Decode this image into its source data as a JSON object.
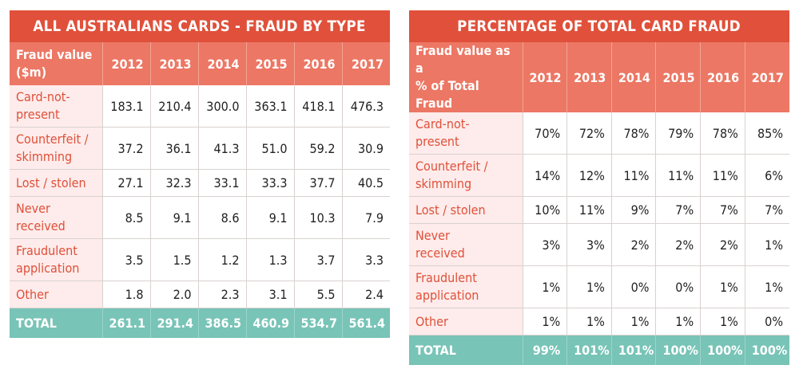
{
  "left": {
    "title": "ALL AUSTRALIANS CARDS - FRAUD BY TYPE",
    "header_label": [
      "Fraud value",
      "($m)"
    ],
    "years": [
      "2012",
      "2013",
      "2014",
      "2015",
      "2016",
      "2017"
    ],
    "rows": [
      {
        "label": [
          "Card-not-",
          "present"
        ],
        "values": [
          "183.1",
          "210.4",
          "300.0",
          "363.1",
          "418.1",
          "476.3"
        ]
      },
      {
        "label": [
          "Counterfeit /",
          "skimming"
        ],
        "values": [
          "37.2",
          "36.1",
          "41.3",
          "51.0",
          "59.2",
          "30.9"
        ]
      },
      {
        "label": [
          "Lost / stolen"
        ],
        "values": [
          "27.1",
          "32.3",
          "33.1",
          "33.3",
          "37.7",
          "40.5"
        ]
      },
      {
        "label": [
          "Never",
          "received"
        ],
        "values": [
          "8.5",
          "9.1",
          "8.6",
          "9.1",
          "10.3",
          "7.9"
        ]
      },
      {
        "label": [
          "Fraudulent",
          "application"
        ],
        "values": [
          "3.5",
          "1.5",
          "1.2",
          "1.3",
          "3.7",
          "3.3"
        ]
      },
      {
        "label": [
          "Other"
        ],
        "values": [
          "1.8",
          "2.0",
          "2.3",
          "3.1",
          "5.5",
          "2.4"
        ]
      }
    ],
    "total": {
      "label": "TOTAL",
      "values": [
        "261.1",
        "291.4",
        "386.5",
        "460.9",
        "534.7",
        "561.4"
      ]
    }
  },
  "right": {
    "title": "PERCENTAGE OF TOTAL CARD FRAUD",
    "header_label": [
      "Fraud value as a",
      "% of Total Fraud"
    ],
    "years": [
      "2012",
      "2013",
      "2014",
      "2015",
      "2016",
      "2017"
    ],
    "rows": [
      {
        "label": [
          "Card-not-",
          "present"
        ],
        "values": [
          "70%",
          "72%",
          "78%",
          "79%",
          "78%",
          "85%"
        ]
      },
      {
        "label": [
          "Counterfeit /",
          "skimming"
        ],
        "values": [
          "14%",
          "12%",
          "11%",
          "11%",
          "11%",
          "6%"
        ]
      },
      {
        "label": [
          "Lost / stolen"
        ],
        "values": [
          "10%",
          "11%",
          "9%",
          "7%",
          "7%",
          "7%"
        ]
      },
      {
        "label": [
          "Never",
          "received"
        ],
        "values": [
          "3%",
          "3%",
          "2%",
          "2%",
          "2%",
          "1%"
        ]
      },
      {
        "label": [
          "Fraudulent",
          "application"
        ],
        "values": [
          "1%",
          "1%",
          "0%",
          "0%",
          "1%",
          "1%"
        ]
      },
      {
        "label": [
          "Other"
        ],
        "values": [
          "1%",
          "1%",
          "1%",
          "1%",
          "1%",
          "0%"
        ]
      }
    ],
    "total": {
      "label": "TOTAL",
      "values": [
        "99%",
        "101%",
        "101%",
        "100%",
        "100%",
        "100%"
      ]
    }
  },
  "colors": {
    "title_bg": "#e0503a",
    "header_bg": "#ec7764",
    "label_bg": "#fdeceb",
    "label_text": "#e0503a",
    "total_bg": "#78c4b7"
  }
}
